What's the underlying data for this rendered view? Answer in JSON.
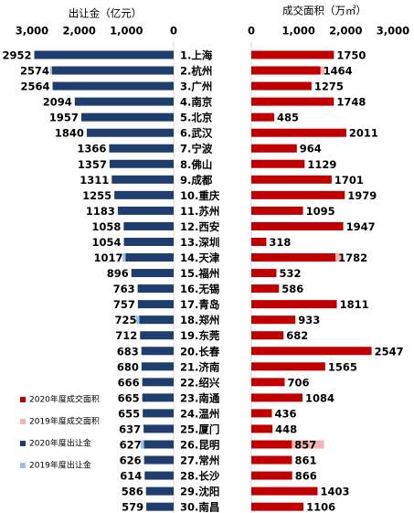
{
  "chart_data": [
    {
      "type": "hbar",
      "title": "出让金（亿元）",
      "xlim": [
        3000,
        0
      ],
      "xticks": [
        {
          "value": 3000,
          "label": "3,000"
        },
        {
          "value": 2000,
          "label": "2,000"
        },
        {
          "value": 1000,
          "label": "1,000"
        },
        0
      ],
      "series": [
        {
          "name": "2020年度出让金",
          "color": "#1f3d6d",
          "values": [
            2952,
            2574,
            2564,
            2094,
            1957,
            1840,
            1366,
            1357,
            1311,
            1255,
            1183,
            1058,
            1054,
            1017,
            896,
            763,
            757,
            725,
            712,
            683,
            680,
            666,
            665,
            655,
            637,
            627,
            626,
            614,
            586,
            579
          ]
        },
        {
          "name": "2019年度出让金",
          "color": "#9cc0e4",
          "values": [
            null,
            2620,
            null,
            null,
            null,
            null,
            null,
            null,
            null,
            null,
            null,
            null,
            null,
            1080,
            null,
            null,
            null,
            800,
            null,
            null,
            null,
            null,
            null,
            null,
            null,
            700,
            null,
            null,
            null,
            null
          ]
        }
      ]
    },
    {
      "type": "hbar",
      "title": "成交面积（万㎡）",
      "xlim": [
        0,
        3000
      ],
      "xticks": [
        0,
        {
          "value": 1000,
          "label": "1,000"
        },
        {
          "value": 2000,
          "label": "2,000"
        },
        {
          "value": 3000,
          "label": "3,000"
        }
      ],
      "categories": [
        "1.上海",
        "2.杭州",
        "3.广州",
        "4.南京",
        "5.北京",
        "6.武汉",
        "7.宁波",
        "8.佛山",
        "9.成都",
        "10.重庆",
        "11.苏州",
        "12.西安",
        "13.深圳",
        "14.天津",
        "15.福州",
        "16.无锡",
        "17.青岛",
        "18.郑州",
        "19.东莞",
        "20.长春",
        "21.济南",
        "22.绍兴",
        "23.南通",
        "24.温州",
        "25.厦门",
        "26.昆明",
        "27.常州",
        "28.长沙",
        "29.沈阳",
        "30.南昌"
      ],
      "series": [
        {
          "name": "2020年度成交面积",
          "color": "#c00000",
          "values": [
            1750,
            1464,
            1275,
            1748,
            485,
            2011,
            964,
            1129,
            1701,
            1979,
            1095,
            1947,
            318,
            1782,
            532,
            586,
            1811,
            933,
            682,
            2547,
            1565,
            706,
            1084,
            436,
            448,
            857,
            861,
            866,
            1403,
            1106
          ]
        },
        {
          "name": "2019年度成交面积",
          "color": "#f2b3b3",
          "values": [
            null,
            1560,
            null,
            null,
            null,
            null,
            900,
            null,
            null,
            null,
            null,
            null,
            null,
            1900,
            null,
            null,
            null,
            900,
            null,
            null,
            null,
            null,
            null,
            null,
            null,
            1540,
            null,
            null,
            null,
            null
          ]
        }
      ]
    }
  ],
  "legend": "lower left"
}
